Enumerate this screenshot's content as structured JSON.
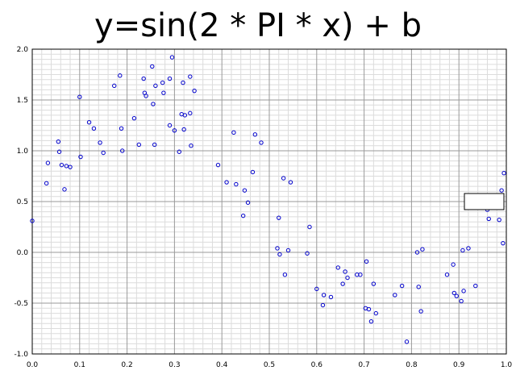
{
  "chart_data": {
    "type": "scatter",
    "title": "y=sin(2 * PI * x) + b",
    "xlabel": "",
    "ylabel": "",
    "xlim": [
      0.0,
      1.0
    ],
    "ylim": [
      -1.0,
      2.0
    ],
    "grid": true,
    "marker_color": "#0000cc",
    "x_ticks": [
      "0.0",
      "0.1",
      "0.2",
      "0.3",
      "0.4",
      "0.5",
      "0.6",
      "0.7",
      "0.8",
      "0.9",
      "1.0"
    ],
    "y_ticks": [
      "-1.0",
      "-0.5",
      "0.0",
      "0.5",
      "1.0",
      "1.5",
      "2.0"
    ],
    "series": [
      {
        "points": [
          [
            0.0,
            0.31
          ],
          [
            0.03,
            0.68
          ],
          [
            0.033,
            0.88
          ],
          [
            0.055,
            1.09
          ],
          [
            0.057,
            0.99
          ],
          [
            0.062,
            0.86
          ],
          [
            0.068,
            0.62
          ],
          [
            0.072,
            0.85
          ],
          [
            0.08,
            0.84
          ],
          [
            0.1,
            1.53
          ],
          [
            0.102,
            0.94
          ],
          [
            0.12,
            1.28
          ],
          [
            0.13,
            1.22
          ],
          [
            0.143,
            1.08
          ],
          [
            0.15,
            0.98
          ],
          [
            0.173,
            1.64
          ],
          [
            0.185,
            1.74
          ],
          [
            0.188,
            1.22
          ],
          [
            0.19,
            1.0
          ],
          [
            0.215,
            1.32
          ],
          [
            0.225,
            1.06
          ],
          [
            0.235,
            1.71
          ],
          [
            0.237,
            1.57
          ],
          [
            0.24,
            1.54
          ],
          [
            0.253,
            1.83
          ],
          [
            0.255,
            1.46
          ],
          [
            0.258,
            1.06
          ],
          [
            0.26,
            1.64
          ],
          [
            0.275,
            1.67
          ],
          [
            0.277,
            1.57
          ],
          [
            0.29,
            1.71
          ],
          [
            0.29,
            1.25
          ],
          [
            0.295,
            1.92
          ],
          [
            0.3,
            1.2
          ],
          [
            0.31,
            0.99
          ],
          [
            0.315,
            1.36
          ],
          [
            0.318,
            1.67
          ],
          [
            0.32,
            1.21
          ],
          [
            0.322,
            1.35
          ],
          [
            0.333,
            1.73
          ],
          [
            0.333,
            1.37
          ],
          [
            0.335,
            1.05
          ],
          [
            0.342,
            1.59
          ],
          [
            0.392,
            0.86
          ],
          [
            0.41,
            0.69
          ],
          [
            0.425,
            1.18
          ],
          [
            0.43,
            0.67
          ],
          [
            0.445,
            0.36
          ],
          [
            0.448,
            0.61
          ],
          [
            0.455,
            0.49
          ],
          [
            0.465,
            0.79
          ],
          [
            0.47,
            1.16
          ],
          [
            0.483,
            1.08
          ],
          [
            0.517,
            0.04
          ],
          [
            0.52,
            0.34
          ],
          [
            0.522,
            -0.02
          ],
          [
            0.53,
            0.73
          ],
          [
            0.533,
            -0.22
          ],
          [
            0.54,
            0.02
          ],
          [
            0.545,
            0.69
          ],
          [
            0.58,
            -0.01
          ],
          [
            0.585,
            0.25
          ],
          [
            0.6,
            -0.36
          ],
          [
            0.613,
            -0.52
          ],
          [
            0.615,
            -0.42
          ],
          [
            0.63,
            -0.44
          ],
          [
            0.645,
            -0.15
          ],
          [
            0.655,
            -0.31
          ],
          [
            0.66,
            -0.19
          ],
          [
            0.665,
            -0.25
          ],
          [
            0.685,
            -0.22
          ],
          [
            0.692,
            -0.22
          ],
          [
            0.705,
            -0.09
          ],
          [
            0.703,
            -0.55
          ],
          [
            0.71,
            -0.56
          ],
          [
            0.715,
            -0.68
          ],
          [
            0.72,
            -0.31
          ],
          [
            0.725,
            -0.6
          ],
          [
            0.765,
            -0.42
          ],
          [
            0.78,
            -0.33
          ],
          [
            0.79,
            -0.88
          ],
          [
            0.812,
            0.0
          ],
          [
            0.815,
            -0.34
          ],
          [
            0.82,
            -0.58
          ],
          [
            0.823,
            0.03
          ],
          [
            0.875,
            -0.22
          ],
          [
            0.888,
            -0.12
          ],
          [
            0.89,
            -0.4
          ],
          [
            0.895,
            -0.43
          ],
          [
            0.905,
            -0.48
          ],
          [
            0.908,
            0.02
          ],
          [
            0.91,
            -0.38
          ],
          [
            0.92,
            0.04
          ],
          [
            0.935,
            -0.33
          ],
          [
            0.96,
            0.42
          ],
          [
            0.963,
            0.33
          ],
          [
            0.985,
            0.32
          ],
          [
            0.99,
            0.61
          ],
          [
            0.993,
            0.09
          ],
          [
            0.995,
            0.78
          ]
        ]
      }
    ]
  }
}
